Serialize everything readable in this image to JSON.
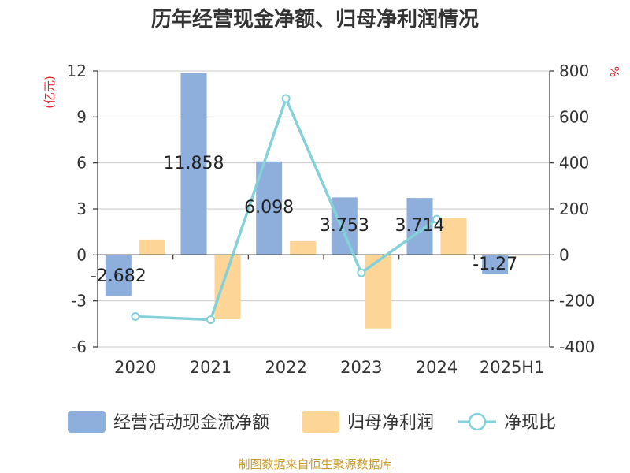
{
  "title": "历年经营现金净额、归母净利润情况",
  "source": "制图数据来自恒生聚源数据库",
  "left_unit": "(亿元)",
  "right_unit": "%",
  "colors": {
    "ocf": "#8eaedb",
    "netprofit": "#fdd596",
    "ratio": "#85d1d9",
    "unit": "#e8242b",
    "source": "#c79a2e"
  },
  "legend": {
    "ocf": "经营活动现金流净额",
    "netprofit": "归母净利润",
    "ratio": "净现比"
  },
  "chart_data": {
    "type": "bar",
    "categories": [
      "2020",
      "2021",
      "2022",
      "2023",
      "2024",
      "2025H1"
    ],
    "series": [
      {
        "name": "经营活动现金流净额",
        "axis": "left",
        "type": "bar",
        "values": [
          -2.682,
          11.858,
          6.098,
          3.753,
          3.714,
          -1.27
        ],
        "labels": [
          "-2.682",
          "11.858",
          "6.098",
          "3.753",
          "3.714",
          "-1.27"
        ]
      },
      {
        "name": "归母净利润",
        "axis": "left",
        "type": "bar",
        "values": [
          1.0,
          -4.2,
          0.9,
          -4.8,
          2.4,
          -0.05
        ]
      },
      {
        "name": "净现比",
        "axis": "right",
        "type": "line",
        "values": [
          -268,
          -282,
          680,
          -78,
          155,
          null
        ]
      }
    ],
    "left_axis": {
      "ylim": [
        -6,
        12
      ],
      "ticks": [
        -6,
        -3,
        0,
        3,
        6,
        9,
        12
      ]
    },
    "right_axis": {
      "ylim": [
        -400,
        800
      ],
      "ticks": [
        -400,
        -200,
        0,
        200,
        400,
        600,
        800
      ]
    },
    "grid": true,
    "legend_position": "bottom"
  }
}
